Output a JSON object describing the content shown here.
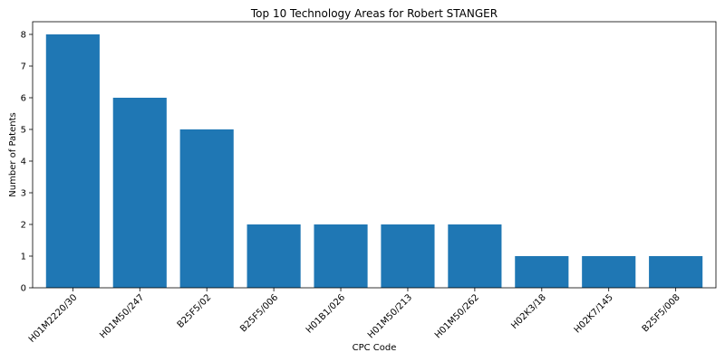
{
  "chart_data": {
    "type": "bar",
    "title": "Top 10 Technology Areas for Robert STANGER",
    "xlabel": "CPC Code",
    "ylabel": "Number of Patents",
    "categories": [
      "H01M2220/30",
      "H01M50/247",
      "B25F5/02",
      "B25F5/006",
      "H01B1/026",
      "H01M50/213",
      "H01M50/262",
      "H02K3/18",
      "H02K7/145",
      "B25F5/008"
    ],
    "values": [
      8,
      6,
      5,
      2,
      2,
      2,
      2,
      1,
      1,
      1
    ],
    "ylim": [
      0,
      8.4
    ],
    "yticks": [
      0,
      1,
      2,
      3,
      4,
      5,
      6,
      7,
      8
    ],
    "grid": false,
    "bar_color": "#1f77b4"
  }
}
